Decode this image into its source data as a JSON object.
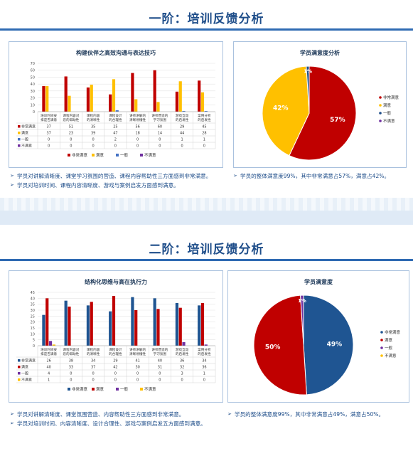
{
  "sections": [
    {
      "title": "一阶：培训反馈分析",
      "bar_panel_title": "构建伙伴之高效沟通与表达技巧",
      "pie_panel_title": "学员满意度分析",
      "notes_left": [
        "学员对讲解清晰度、课堂学习氛围的营造、课程内容帮助性三方面感到非常满意。",
        "学员对培训时间、课程内容清晰度、游戏与案例启发方面感到满意。"
      ],
      "notes_right": [
        "学员的整体满意度99%，其中非常满意占57%，满意占42%。"
      ]
    },
    {
      "title": "二阶：培训反馈分析",
      "bar_panel_title": "结构化思维与高在执行力",
      "pie_panel_title": "学员满意度",
      "notes_left": [
        "学员对讲解清晰度、课堂氛围营造、内容帮助性三方面感到非常满意。",
        "学员对培训时间、内容清晰度、设计合理性、游戏与案例启发五方面感到满意。"
      ],
      "notes_right": [
        "学员的整体满意度99%，其中非常满意占49%，满意占50%。"
      ]
    }
  ],
  "chart_data": [
    {
      "type": "bar",
      "title": "构建伙伴之高效沟通与表达技巧",
      "categories": [
        "培训时间安排是否满意",
        "课程内容对您的帮助性",
        "课程内容的清晰性",
        "课程设计的合理性",
        "讲师讲解的清晰易懂性",
        "讲师营造的学习氛围",
        "游戏互动的启发性",
        "案例分析的启发性"
      ],
      "ylim": [
        0,
        70
      ],
      "yticks": [
        0,
        10,
        20,
        30,
        40,
        50,
        60,
        70
      ],
      "series": [
        {
          "name": "非常满意",
          "color": "#c00000",
          "values": [
            37,
            51,
            35,
            25,
            56,
            60,
            29,
            45
          ]
        },
        {
          "name": "满意",
          "color": "#ffc000",
          "values": [
            37,
            23,
            39,
            47,
            18,
            14,
            44,
            28
          ]
        },
        {
          "name": "一般",
          "color": "#4472c4",
          "values": [
            0,
            0,
            0,
            2,
            0,
            0,
            1,
            1
          ]
        },
        {
          "name": "不满意",
          "color": "#7030a0",
          "values": [
            0,
            0,
            0,
            0,
            0,
            0,
            0,
            0
          ]
        }
      ],
      "legend": "bottom"
    },
    {
      "type": "pie",
      "title": "学员满意度分析",
      "slices": [
        {
          "name": "非常满意",
          "value": 57,
          "label": "57%",
          "color": "#c00000"
        },
        {
          "name": "满意",
          "value": 42,
          "label": "42%",
          "color": "#ffc000"
        },
        {
          "name": "一般",
          "value": 1,
          "label": "1%",
          "color": "#1f4e8a"
        },
        {
          "name": "不满意",
          "value": 0,
          "label": "",
          "color": "#7030a0"
        }
      ],
      "legend": "right"
    },
    {
      "type": "bar",
      "title": "结构化思维与高在执行力",
      "categories": [
        "培训时间安排是否满意",
        "课程内容对您的帮助性",
        "课程内容的清晰性",
        "课程设计的合理性",
        "讲师讲解的清晰易懂性",
        "讲师营造的学习氛围",
        "游戏互动的启发性",
        "案例分析的启发性"
      ],
      "ylim": [
        0,
        45
      ],
      "yticks": [
        0,
        5,
        10,
        15,
        20,
        25,
        30,
        35,
        40,
        45
      ],
      "series": [
        {
          "name": "非常满意",
          "color": "#1f5592",
          "values": [
            26,
            38,
            34,
            29,
            41,
            40,
            36,
            34
          ]
        },
        {
          "name": "满意",
          "color": "#c00000",
          "values": [
            40,
            33,
            37,
            42,
            30,
            31,
            32,
            36
          ]
        },
        {
          "name": "一般",
          "color": "#7030a0",
          "values": [
            4,
            0,
            0,
            0,
            0,
            0,
            3,
            1
          ]
        },
        {
          "name": "不满意",
          "color": "#ffc000",
          "values": [
            1,
            0,
            0,
            0,
            0,
            0,
            0,
            0
          ]
        }
      ],
      "legend": "bottom"
    },
    {
      "type": "pie",
      "title": "学员满意度",
      "slices": [
        {
          "name": "非常满意",
          "value": 49,
          "label": "49%",
          "color": "#1f5592"
        },
        {
          "name": "满意",
          "value": 50,
          "label": "50%",
          "color": "#c00000"
        },
        {
          "name": "一般",
          "value": 1,
          "label": "1%",
          "color": "#7030a0"
        },
        {
          "name": "不满意",
          "value": 0,
          "label": "",
          "color": "#ffc000"
        }
      ],
      "legend": "right"
    }
  ]
}
